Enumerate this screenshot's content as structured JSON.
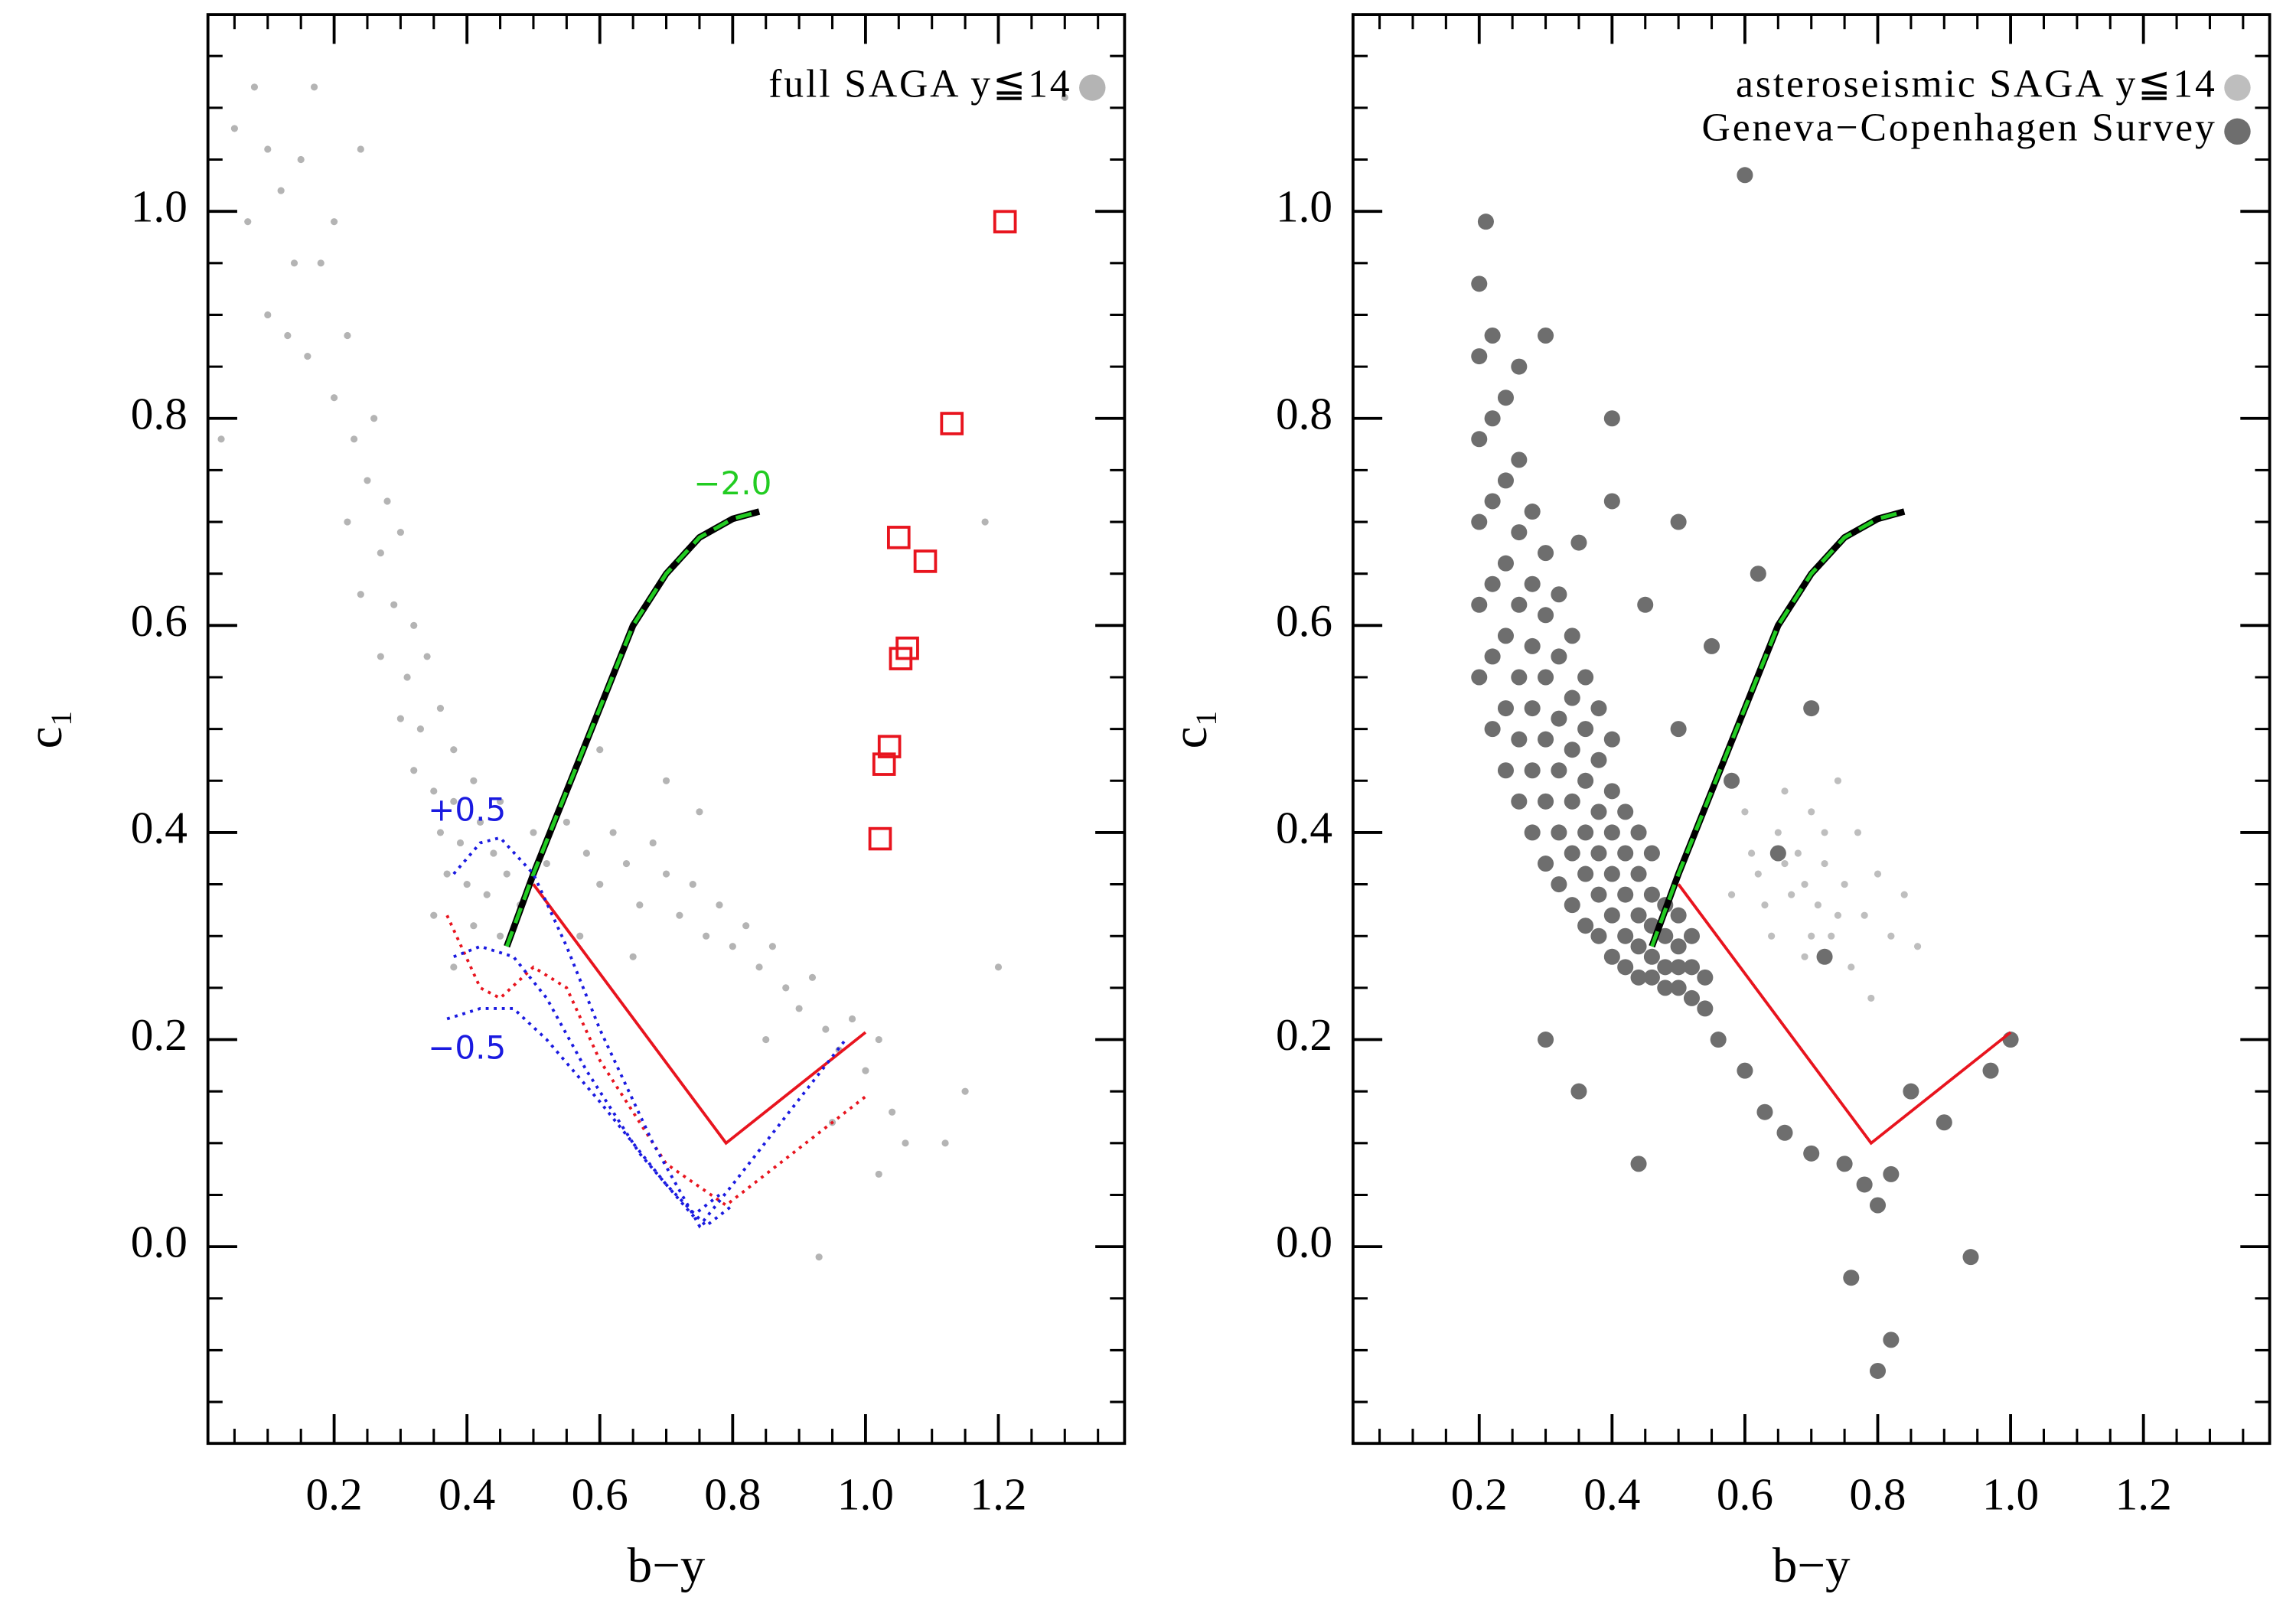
{
  "chart_data": [
    {
      "type": "scatter",
      "xlabel": "b−y",
      "ylabel": "c₁",
      "xlim": [
        0.01,
        1.39
      ],
      "ylim": [
        -0.19,
        1.19
      ],
      "xticks": [
        0.2,
        0.4,
        0.6,
        0.8,
        {
          "value": 1,
          "label": "1.0"
        },
        1.2
      ],
      "yticks": [
        {
          "value": 0,
          "label": "0.0"
        },
        0.2,
        0.4,
        0.6,
        0.8,
        {
          "value": 1,
          "label": "1.0"
        }
      ],
      "minor_tick_step": 0.05,
      "grid": false,
      "legend": "upper right",
      "series": [
        {
          "name": "full SAGA y≦14",
          "mode": "markers",
          "marker": "circle",
          "color": "#b4b4b4",
          "x": [
            0.05,
            0.08,
            0.1,
            0.07,
            0.12,
            0.15,
            0.17,
            0.14,
            0.18,
            0.2,
            0.1,
            0.13,
            0.16,
            0.22,
            0.24,
            0.2,
            0.23,
            0.26,
            0.25,
            0.28,
            0.22,
            0.27,
            0.3,
            0.24,
            0.29,
            0.32,
            0.27,
            0.31,
            0.34,
            0.3,
            0.33,
            0.36,
            0.38,
            0.32,
            0.35,
            0.38,
            0.41,
            0.36,
            0.39,
            0.42,
            0.44,
            0.37,
            0.4,
            0.43,
            0.46,
            0.41,
            0.45,
            0.48,
            0.35,
            0.5,
            0.52,
            0.55,
            0.58,
            0.6,
            0.62,
            0.64,
            0.66,
            0.68,
            0.7,
            0.72,
            0.74,
            0.76,
            0.78,
            0.8,
            0.82,
            0.84,
            0.86,
            0.88,
            0.9,
            0.92,
            0.94,
            0.96,
            0.98,
            1.0,
            1.02,
            1.04,
            1.06,
            0.95,
            1.15,
            1.2,
            1.18,
            1.12,
            1.3,
            1.02,
            0.93,
            0.7,
            0.6,
            0.57,
            0.65,
            0.75,
            0.85,
            0.45,
            0.03,
            0.38
          ],
          "y": [
            1.08,
            1.12,
            1.06,
            0.99,
            1.02,
            1.05,
            1.12,
            0.95,
            0.95,
            0.99,
            0.9,
            0.88,
            0.86,
            0.88,
            1.06,
            0.82,
            0.78,
            0.8,
            0.74,
            0.72,
            0.7,
            0.67,
            0.69,
            0.63,
            0.62,
            0.6,
            0.57,
            0.55,
            0.57,
            0.51,
            0.5,
            0.52,
            0.48,
            0.46,
            0.44,
            0.43,
            0.45,
            0.4,
            0.39,
            0.41,
            0.38,
            0.36,
            0.35,
            0.34,
            0.36,
            0.31,
            0.3,
            0.33,
            0.32,
            0.4,
            0.37,
            0.41,
            0.38,
            0.35,
            0.4,
            0.37,
            0.33,
            0.39,
            0.36,
            0.32,
            0.35,
            0.3,
            0.33,
            0.29,
            0.31,
            0.27,
            0.29,
            0.25,
            0.23,
            0.26,
            0.21,
            0.19,
            0.22,
            0.17,
            0.2,
            0.13,
            0.1,
            0.12,
            0.15,
            0.27,
            0.7,
            0.1,
            1.11,
            0.07,
            -0.01,
            0.45,
            0.48,
            0.3,
            0.28,
            0.42,
            0.2,
            0.43,
            0.78,
            0.27
          ]
        },
        {
          "mode": "markers",
          "marker": "square",
          "color": "#e8141e",
          "x": [
            1.21,
            1.13,
            1.05,
            1.09,
            1.063,
            1.053,
            1.036,
            1.028,
            1.022
          ],
          "y": [
            0.99,
            0.795,
            0.685,
            0.662,
            0.578,
            0.568,
            0.483,
            0.466,
            0.394
          ]
        },
        {
          "mode": "line",
          "style": "green-dashed",
          "color": "#22cc22",
          "x": [
            0.46,
            0.5,
            0.55,
            0.6,
            0.65,
            0.7,
            0.75,
            0.8,
            0.84
          ],
          "y": [
            0.29,
            0.36,
            0.44,
            0.52,
            0.6,
            0.65,
            0.685,
            0.703,
            0.71
          ]
        },
        {
          "mode": "line",
          "style": "solid",
          "color": "#e8141e",
          "x": [
            0.5,
            0.79,
            1.0
          ],
          "y": [
            0.35,
            0.1,
            0.207
          ]
        },
        {
          "mode": "line",
          "style": "dotted",
          "color": "#e8141e",
          "x": [
            0.37,
            0.42,
            0.45,
            0.5,
            0.55,
            0.6,
            0.7,
            0.79,
            1.0
          ],
          "y": [
            0.32,
            0.25,
            0.24,
            0.27,
            0.25,
            0.18,
            0.08,
            0.04,
            0.145
          ]
        },
        {
          "mode": "line",
          "style": "dotted",
          "color": "#1a1ae0",
          "x": [
            0.38,
            0.42,
            0.45,
            0.5,
            0.55,
            0.6,
            0.68,
            0.75,
            0.8,
            0.97
          ],
          "y": [
            0.36,
            0.39,
            0.395,
            0.36,
            0.29,
            0.21,
            0.1,
            0.02,
            0.06,
            0.2
          ]
        },
        {
          "mode": "line",
          "style": "dotted",
          "color": "#1a1ae0",
          "x": [
            0.38,
            0.42,
            0.47,
            0.52,
            0.58,
            0.66,
            0.74,
            0.78
          ],
          "y": [
            0.28,
            0.29,
            0.28,
            0.24,
            0.17,
            0.09,
            0.03,
            0.05
          ]
        },
        {
          "mode": "line",
          "style": "dotted",
          "color": "#1a1ae0",
          "x": [
            0.37,
            0.42,
            0.47,
            0.52,
            0.6,
            0.7,
            0.76,
            0.8
          ],
          "y": [
            0.22,
            0.23,
            0.23,
            0.2,
            0.14,
            0.06,
            0.02,
            0.04
          ]
        }
      ],
      "annotations": [
        {
          "text": "−2.0",
          "x": 0.8,
          "y": 0.735,
          "color": "#22cc22"
        },
        {
          "text": "+0.5",
          "x": 0.4,
          "y": 0.42,
          "color": "#1a1ae0"
        },
        {
          "text": "−0.5",
          "x": 0.4,
          "y": 0.19,
          "color": "#1a1ae0"
        }
      ]
    },
    {
      "type": "scatter",
      "xlabel": "b−y",
      "ylabel": "c₁",
      "xlim": [
        0.01,
        1.39
      ],
      "ylim": [
        -0.19,
        1.19
      ],
      "xticks": [
        0.2,
        0.4,
        0.6,
        0.8,
        {
          "value": 1,
          "label": "1.0"
        },
        1.2
      ],
      "yticks": [
        {
          "value": 0,
          "label": "0.0"
        },
        0.2,
        0.4,
        0.6,
        0.8,
        {
          "value": 1,
          "label": "1.0"
        }
      ],
      "minor_tick_step": 0.05,
      "grid": false,
      "legend": "upper right",
      "series": [
        {
          "name": "asteroseismic SAGA y≦14",
          "mode": "markers",
          "marker": "circle",
          "color": "#bebebe",
          "x": [
            0.6,
            0.62,
            0.64,
            0.65,
            0.66,
            0.67,
            0.68,
            0.69,
            0.7,
            0.71,
            0.72,
            0.73,
            0.74,
            0.75,
            0.76,
            0.77,
            0.78,
            0.8,
            0.82,
            0.84,
            0.86,
            0.63,
            0.66,
            0.69,
            0.72,
            0.74,
            0.79,
            0.61,
            0.7,
            0.58
          ],
          "y": [
            0.42,
            0.36,
            0.3,
            0.4,
            0.44,
            0.34,
            0.38,
            0.28,
            0.42,
            0.33,
            0.37,
            0.3,
            0.45,
            0.35,
            0.27,
            0.4,
            0.32,
            0.36,
            0.3,
            0.34,
            0.29,
            0.33,
            0.37,
            0.35,
            0.4,
            0.32,
            0.24,
            0.38,
            0.3,
            0.34
          ]
        },
        {
          "name": "Geneva−Copenhagen Survey",
          "mode": "markers",
          "marker": "circle",
          "color": "#6e6e6e",
          "size": "large",
          "x": [
            0.2,
            0.2,
            0.2,
            0.2,
            0.2,
            0.2,
            0.22,
            0.22,
            0.22,
            0.22,
            0.22,
            0.22,
            0.24,
            0.24,
            0.24,
            0.24,
            0.24,
            0.24,
            0.26,
            0.26,
            0.26,
            0.26,
            0.26,
            0.26,
            0.28,
            0.28,
            0.28,
            0.28,
            0.28,
            0.28,
            0.3,
            0.3,
            0.3,
            0.3,
            0.3,
            0.3,
            0.32,
            0.32,
            0.32,
            0.32,
            0.32,
            0.32,
            0.34,
            0.34,
            0.34,
            0.34,
            0.34,
            0.34,
            0.36,
            0.36,
            0.36,
            0.36,
            0.36,
            0.36,
            0.38,
            0.38,
            0.38,
            0.38,
            0.38,
            0.38,
            0.4,
            0.4,
            0.4,
            0.4,
            0.4,
            0.4,
            0.42,
            0.42,
            0.42,
            0.42,
            0.42,
            0.44,
            0.44,
            0.44,
            0.44,
            0.44,
            0.46,
            0.46,
            0.46,
            0.46,
            0.46,
            0.48,
            0.48,
            0.48,
            0.48,
            0.5,
            0.5,
            0.5,
            0.5,
            0.52,
            0.52,
            0.52,
            0.54,
            0.54,
            0.56,
            0.6,
            0.63,
            0.66,
            0.7,
            0.75,
            0.78,
            0.8,
            0.82,
            0.76,
            0.82,
            0.8,
            0.94,
            0.6,
            0.21,
            0.3,
            0.4,
            0.5,
            0.55,
            0.62,
            0.7,
            0.58,
            0.65,
            0.72,
            0.85,
            0.9,
            0.97,
            1.0,
            0.44,
            0.35,
            0.3,
            0.4,
            0.45,
            0.5,
            0.26,
            0.35
          ],
          "y": [
            0.55,
            0.62,
            0.7,
            0.78,
            0.86,
            0.93,
            0.5,
            0.57,
            0.64,
            0.72,
            0.8,
            0.88,
            0.46,
            0.52,
            0.59,
            0.66,
            0.74,
            0.82,
            0.43,
            0.49,
            0.55,
            0.62,
            0.69,
            0.76,
            0.4,
            0.46,
            0.52,
            0.58,
            0.64,
            0.71,
            0.37,
            0.43,
            0.49,
            0.55,
            0.61,
            0.67,
            0.35,
            0.4,
            0.46,
            0.51,
            0.57,
            0.63,
            0.33,
            0.38,
            0.43,
            0.48,
            0.53,
            0.59,
            0.31,
            0.36,
            0.4,
            0.45,
            0.5,
            0.55,
            0.3,
            0.34,
            0.38,
            0.42,
            0.47,
            0.52,
            0.28,
            0.32,
            0.36,
            0.4,
            0.44,
            0.49,
            0.27,
            0.3,
            0.34,
            0.38,
            0.42,
            0.26,
            0.29,
            0.32,
            0.36,
            0.4,
            0.26,
            0.28,
            0.31,
            0.34,
            0.38,
            0.25,
            0.27,
            0.3,
            0.33,
            0.25,
            0.27,
            0.29,
            0.32,
            0.24,
            0.27,
            0.3,
            0.23,
            0.26,
            0.2,
            0.17,
            0.13,
            0.11,
            0.09,
            0.08,
            0.06,
            0.04,
            0.07,
            -0.03,
            -0.09,
            -0.12,
            -0.01,
            1.035,
            0.99,
            0.88,
            0.8,
            0.7,
            0.58,
            0.65,
            0.52,
            0.45,
            0.38,
            0.28,
            0.15,
            0.12,
            0.17,
            0.2,
            0.08,
            0.15,
            0.2,
            0.72,
            0.62,
            0.5,
            0.85,
            0.68
          ]
        },
        {
          "mode": "line",
          "style": "green-dashed",
          "color": "#22cc22",
          "x": [
            0.46,
            0.5,
            0.55,
            0.6,
            0.65,
            0.7,
            0.75,
            0.8,
            0.84
          ],
          "y": [
            0.29,
            0.36,
            0.44,
            0.52,
            0.6,
            0.65,
            0.685,
            0.703,
            0.71
          ]
        },
        {
          "mode": "line",
          "style": "solid",
          "color": "#e8141e",
          "x": [
            0.5,
            0.79,
            1.0
          ],
          "y": [
            0.35,
            0.1,
            0.207
          ]
        }
      ]
    }
  ]
}
